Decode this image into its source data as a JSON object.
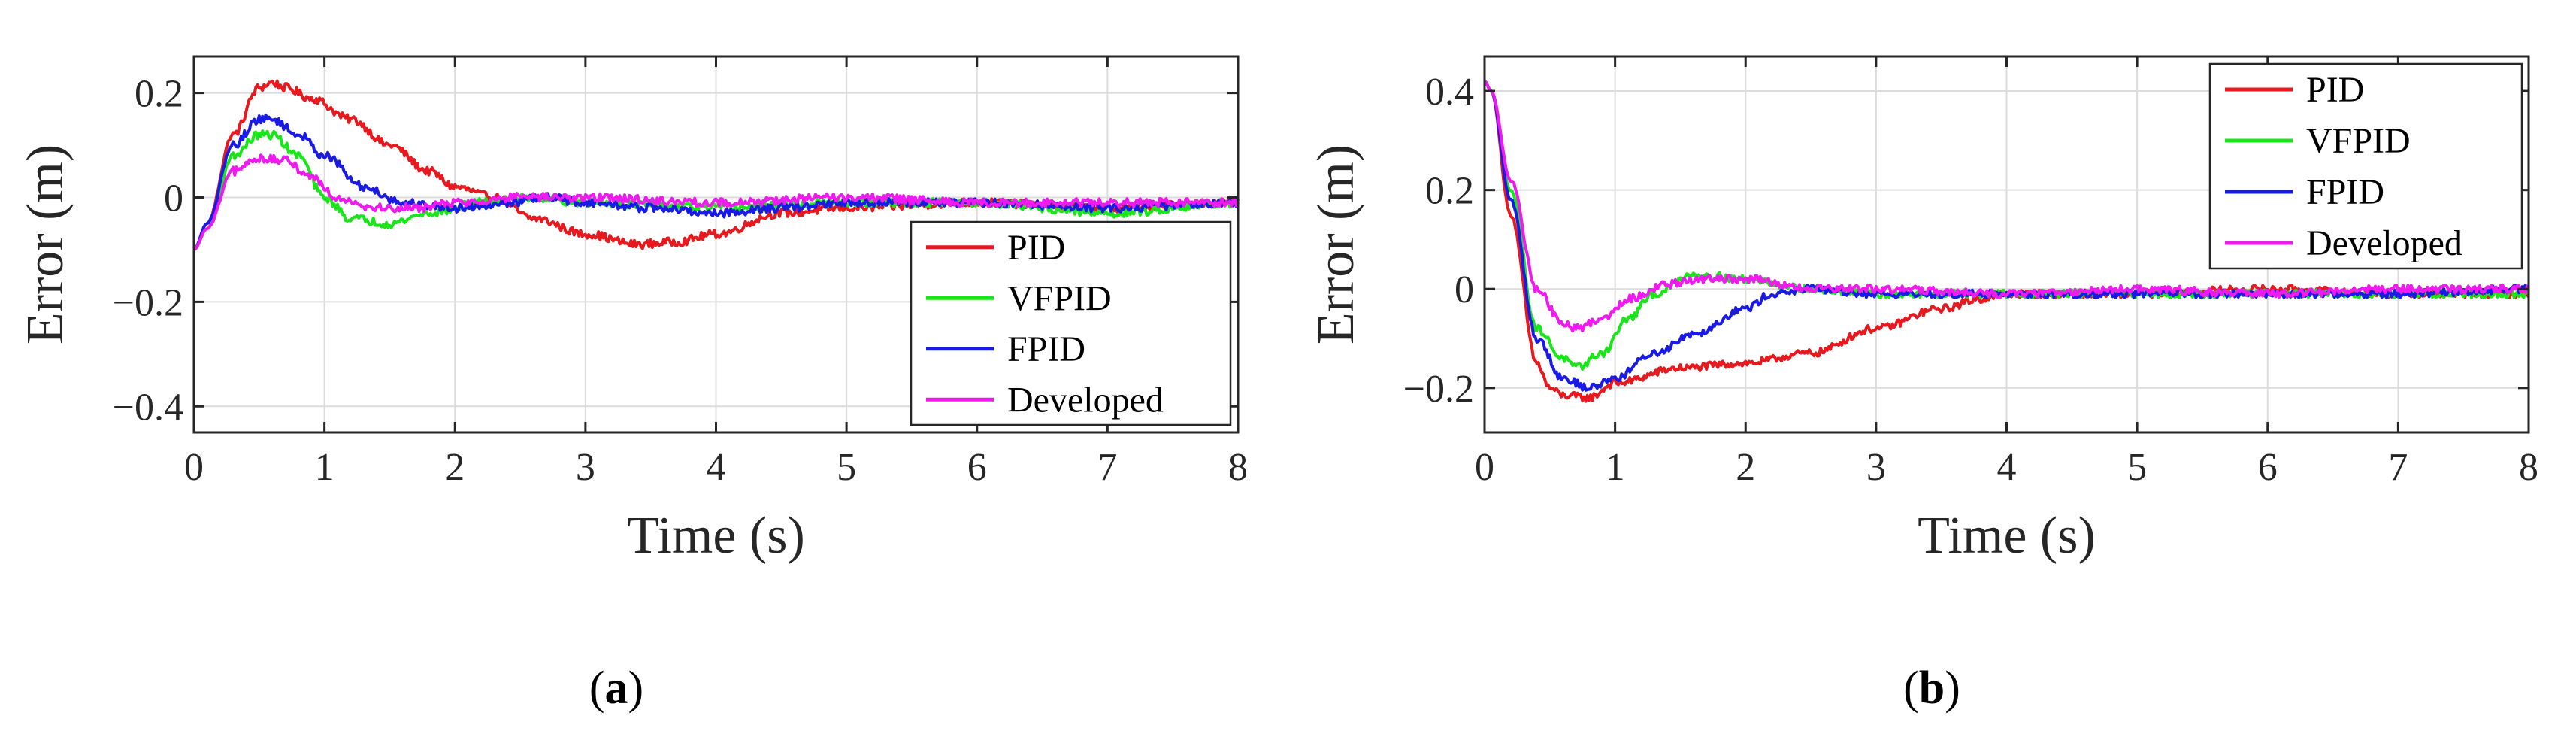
{
  "colors": {
    "PID": "#e8191e",
    "VFPID": "#19e619",
    "FPID": "#1a1ae6",
    "Developed": "#f019f0",
    "grid": "#dcdcdc",
    "axis": "#262626"
  },
  "chart_data": [
    {
      "type": "line",
      "caption": {
        "open": "(",
        "letter": "a",
        "close": ")"
      },
      "xlabel": "Time (s)",
      "ylabel": "Error (m)",
      "xlim": [
        0,
        8
      ],
      "ylim": [
        -0.45,
        0.27
      ],
      "xticks": [
        0,
        1,
        2,
        3,
        4,
        5,
        6,
        7,
        8
      ],
      "yticks": [
        -0.4,
        -0.2,
        0,
        0.2
      ],
      "ytick_labels": [
        "−0.4",
        "−0.2",
        "0",
        "0.2"
      ],
      "grid": true,
      "legend": "bottom-right",
      "noise": 0.008,
      "series": [
        {
          "name": "PID",
          "color": "#e8191e",
          "x": [
            0,
            0.1,
            0.3,
            0.5,
            0.6,
            0.7,
            0.9,
            1.2,
            1.5,
            1.8,
            2.0,
            2.3,
            2.6,
            3.0,
            3.4,
            3.7,
            4.0,
            4.5,
            5.0,
            6.0,
            7.0,
            8.0
          ],
          "y": [
            -0.1,
            -0.05,
            0.12,
            0.21,
            0.22,
            0.21,
            0.19,
            0.15,
            0.1,
            0.05,
            0.02,
            0.0,
            -0.04,
            -0.07,
            -0.09,
            -0.085,
            -0.07,
            -0.03,
            -0.02,
            -0.01,
            -0.02,
            -0.01
          ]
        },
        {
          "name": "VFPID",
          "color": "#19e619",
          "x": [
            0,
            0.1,
            0.3,
            0.5,
            0.6,
            0.8,
            1.0,
            1.2,
            1.5,
            1.8,
            2.2,
            2.6,
            3.0,
            4.0,
            5.0,
            6.0,
            7.0,
            8.0
          ],
          "y": [
            -0.1,
            -0.06,
            0.08,
            0.12,
            0.12,
            0.08,
            0.0,
            -0.04,
            -0.05,
            -0.03,
            -0.01,
            0.0,
            -0.01,
            -0.02,
            -0.01,
            -0.01,
            -0.03,
            -0.01
          ]
        },
        {
          "name": "FPID",
          "color": "#1a1ae6",
          "x": [
            0,
            0.1,
            0.3,
            0.5,
            0.6,
            0.8,
            1.0,
            1.3,
            1.6,
            2.0,
            2.4,
            2.7,
            3.0,
            3.5,
            4.0,
            4.5,
            5.0,
            6.0,
            7.0,
            8.0
          ],
          "y": [
            -0.1,
            -0.05,
            0.1,
            0.15,
            0.15,
            0.12,
            0.08,
            0.02,
            -0.01,
            -0.02,
            -0.01,
            0.0,
            -0.01,
            -0.02,
            -0.03,
            -0.02,
            -0.01,
            -0.01,
            -0.02,
            -0.01
          ]
        },
        {
          "name": "Developed",
          "color": "#f019f0",
          "x": [
            0,
            0.1,
            0.3,
            0.5,
            0.7,
            0.9,
            1.1,
            1.4,
            1.7,
            2.0,
            2.5,
            3.0,
            4.0,
            5.0,
            6.0,
            7.0,
            8.0
          ],
          "y": [
            -0.1,
            -0.06,
            0.05,
            0.075,
            0.07,
            0.04,
            0.0,
            -0.02,
            -0.02,
            -0.01,
            0.0,
            0.0,
            -0.01,
            0.0,
            -0.01,
            -0.01,
            -0.01
          ]
        }
      ]
    },
    {
      "type": "line",
      "caption": {
        "open": "(",
        "letter": "b",
        "close": ")"
      },
      "xlabel": "Time (s)",
      "ylabel": "Error (m)",
      "xlim": [
        0,
        8
      ],
      "ylim": [
        -0.29,
        0.47
      ],
      "xticks": [
        0,
        1,
        2,
        3,
        4,
        5,
        6,
        7,
        8
      ],
      "yticks": [
        -0.2,
        0,
        0.2,
        0.4
      ],
      "ytick_labels": [
        "−0.2",
        "0",
        "0.2",
        "0.4"
      ],
      "grid": true,
      "legend": "top-right",
      "noise": 0.008,
      "series": [
        {
          "name": "PID",
          "color": "#e8191e",
          "x": [
            0,
            0.05,
            0.2,
            0.4,
            0.5,
            0.6,
            0.8,
            1.0,
            1.5,
            2.0,
            2.5,
            3.0,
            3.5,
            3.8,
            4.0,
            5.0,
            6.0,
            7.0,
            8.0
          ],
          "y": [
            0.42,
            0.4,
            0.15,
            -0.15,
            -0.2,
            -0.215,
            -0.22,
            -0.19,
            -0.16,
            -0.15,
            -0.13,
            -0.08,
            -0.04,
            -0.02,
            -0.01,
            -0.01,
            0.0,
            -0.01,
            -0.01
          ]
        },
        {
          "name": "VFPID",
          "color": "#19e619",
          "x": [
            0,
            0.05,
            0.2,
            0.4,
            0.6,
            0.7,
            0.9,
            1.1,
            1.3,
            1.6,
            2.0,
            2.5,
            3.0,
            4.0,
            5.0,
            6.0,
            7.0,
            8.0
          ],
          "y": [
            0.42,
            0.4,
            0.2,
            -0.08,
            -0.14,
            -0.16,
            -0.13,
            -0.06,
            -0.01,
            0.03,
            0.02,
            0.0,
            -0.01,
            -0.01,
            -0.01,
            -0.01,
            -0.01,
            -0.01
          ]
        },
        {
          "name": "FPID",
          "color": "#1a1ae6",
          "x": [
            0,
            0.05,
            0.2,
            0.4,
            0.6,
            0.8,
            1.0,
            1.3,
            1.6,
            2.0,
            2.2,
            2.5,
            3.0,
            4.0,
            5.0,
            6.0,
            7.0,
            8.0
          ],
          "y": [
            0.42,
            0.4,
            0.18,
            -0.1,
            -0.18,
            -0.2,
            -0.18,
            -0.13,
            -0.09,
            -0.04,
            -0.01,
            0.0,
            -0.01,
            -0.01,
            -0.01,
            -0.01,
            -0.01,
            0.0
          ]
        },
        {
          "name": "Developed",
          "color": "#f019f0",
          "x": [
            0,
            0.05,
            0.2,
            0.4,
            0.6,
            0.7,
            0.9,
            1.1,
            1.4,
            1.7,
            2.0,
            2.5,
            3.0,
            4.0,
            5.0,
            6.0,
            7.0,
            8.0
          ],
          "y": [
            0.42,
            0.4,
            0.22,
            0.0,
            -0.07,
            -0.08,
            -0.06,
            -0.02,
            0.01,
            0.02,
            0.02,
            0.0,
            0.0,
            -0.01,
            0.0,
            -0.01,
            0.0,
            0.0
          ]
        }
      ]
    }
  ]
}
